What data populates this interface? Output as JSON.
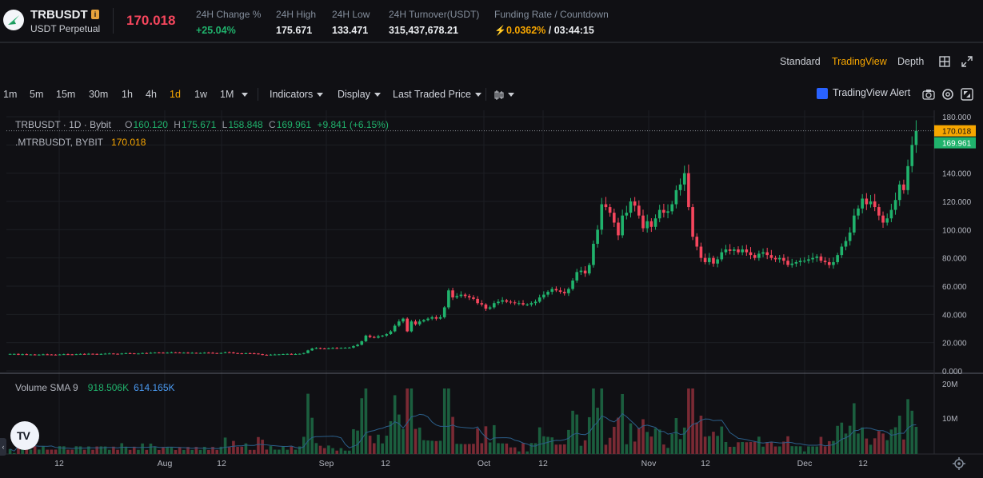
{
  "header": {
    "symbol": "TRBUSDT",
    "info_icon": "i",
    "contract_type": "USDT Perpetual",
    "last_price": "170.018",
    "stats": [
      {
        "label": "24H Change %",
        "value": "+25.04%"
      },
      {
        "label": "24H High",
        "value": "175.671"
      },
      {
        "label": "24H Low",
        "value": "133.471"
      },
      {
        "label": "24H Turnover(USDT)",
        "value": "315,437,678.21"
      }
    ],
    "funding_label": "Funding Rate / Countdown",
    "funding_rate": "0.0362%",
    "countdown": " / 03:44:15",
    "colors": {
      "up": "#20b26c",
      "down": "#f6465d",
      "accent": "#f7a600"
    }
  },
  "view_tabs": {
    "standard": "Standard",
    "tradingview": "TradingView",
    "depth": "Depth",
    "icons": [
      "grid-icon",
      "expand-icon"
    ]
  },
  "toolbar": {
    "timeframes": [
      "1m",
      "5m",
      "15m",
      "30m",
      "1h",
      "4h",
      "1d",
      "1w",
      "1M"
    ],
    "active_timeframe": "1d",
    "indicators": "Indicators",
    "display": "Display",
    "price_source": "Last Traded Price",
    "tv_alert": "TradingView Alert",
    "icons": [
      "chart-type-icon",
      "camera-icon",
      "settings-icon",
      "fullscreen-icon"
    ]
  },
  "legend": {
    "title": "TRBUSDT · 1D · Bybit",
    "O": "160.120",
    "H": "175.671",
    "L": "158.848",
    "C": "169.961",
    "change": "+9.841 (+6.15%)",
    "mark_symbol": ".MTRBUSDT, BYBIT",
    "mark_price": "170.018",
    "volume_label": "Volume SMA 9",
    "volume_value": "918.506K",
    "volume_sma": "614.165K"
  },
  "price_tags": {
    "last": "170.018",
    "close": "169.961"
  },
  "time_axis_labels": [
    "12",
    "Aug",
    "12",
    "Sep",
    "12",
    "Oct",
    "12",
    "Nov",
    "12",
    "Dec",
    "12"
  ],
  "chart_data": {
    "type": "candlestick",
    "y_axis": {
      "min": 0,
      "max": 180,
      "ticks": [
        "180.000",
        "160.000",
        "140.000",
        "120.000",
        "100.000",
        "80.000",
        "60.000",
        "40.000",
        "20.000",
        "0.000"
      ]
    },
    "volume_axis": {
      "ticks": [
        "20M",
        "10M"
      ]
    },
    "x_axis": {
      "ticks": [
        "12",
        "Aug",
        "12",
        "Sep",
        "12",
        "Oct",
        "12",
        "Nov",
        "12",
        "Dec",
        "12"
      ]
    },
    "close_series": [
      12,
      12,
      11.5,
      11.8,
      11.5,
      11.6,
      11.4,
      11.5,
      11.7,
      11.6,
      11.5,
      11.4,
      11.6,
      11.8,
      11.7,
      11.6,
      11.8,
      12,
      11.9,
      12.1,
      12,
      11.8,
      12,
      12.2,
      12.3,
      12.1,
      12,
      12.3,
      12.5,
      12.4,
      12.2,
      12.3,
      12.6,
      12.5,
      12.8,
      13,
      12.9,
      12.7,
      12.9,
      13.1,
      13,
      12.8,
      12.9,
      12.7,
      12.8,
      12.6,
      12.7,
      12.9,
      12.8,
      12.6,
      12.5,
      12.7,
      13.2,
      13,
      12.6,
      12.4,
      12.2,
      12.5,
      12.4,
      12.3,
      11.8,
      11.4,
      11.3,
      11.5,
      11.6,
      11.7,
      11.9,
      12,
      11.8,
      11.9,
      12.1,
      12.6,
      14.5,
      15.8,
      16.2,
      15.9,
      15.7,
      16,
      16.2,
      16.1,
      16.3,
      16.4,
      16.5,
      17.5,
      18.5,
      21,
      25,
      24,
      23.5,
      24.5,
      25,
      26,
      28,
      32,
      35,
      37,
      28,
      35,
      33,
      35,
      36,
      37,
      38,
      37,
      38,
      45,
      57,
      52,
      53,
      54,
      53,
      52,
      51,
      48,
      47,
      44,
      45,
      48,
      49,
      50,
      49,
      48.5,
      48,
      48,
      47,
      47,
      48,
      49,
      52,
      54,
      56,
      58,
      57,
      56,
      55,
      58,
      64,
      70,
      71,
      69,
      75,
      90,
      100,
      118,
      116,
      112,
      105,
      96,
      110,
      112,
      120,
      117,
      110,
      101,
      106,
      102,
      108,
      114,
      112,
      113,
      118,
      128,
      132,
      140,
      116,
      95,
      88,
      80,
      77,
      80,
      76,
      79,
      84,
      86,
      85,
      86,
      84,
      86,
      84,
      82,
      80,
      83,
      84,
      82,
      80,
      79,
      80,
      78,
      75,
      76,
      77,
      78,
      78,
      79,
      80,
      81,
      78,
      77,
      75,
      77,
      82,
      88,
      92,
      98,
      110,
      115,
      122,
      118,
      120,
      116,
      110,
      105,
      108,
      114,
      121,
      132,
      128,
      145,
      160,
      170
    ]
  }
}
